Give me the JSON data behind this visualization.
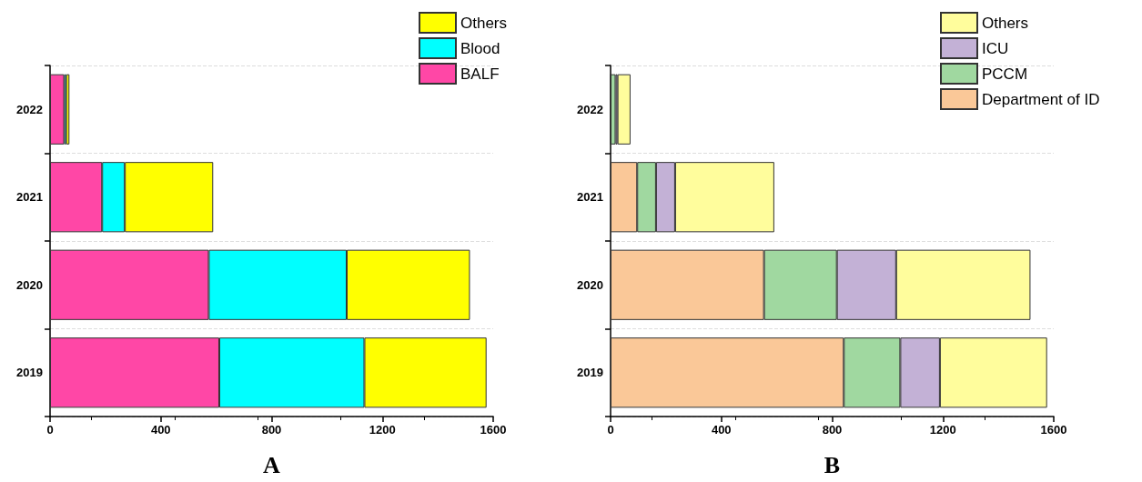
{
  "chart_data": [
    {
      "type": "bar",
      "orientation": "horizontal",
      "stacked": true,
      "xlabel": "A",
      "categories": [
        "2022",
        "2021",
        "2020",
        "2019"
      ],
      "xlim": [
        0,
        1600
      ],
      "xticks": [
        0,
        400,
        800,
        1200,
        1600
      ],
      "grid": "y",
      "legend": "top right",
      "series": [
        {
          "name": "BALF",
          "color": "#ff47a6",
          "values": [
            51,
            188,
            573,
            611
          ]
        },
        {
          "name": "Blood",
          "color": "#00ffff",
          "values": [
            7,
            82,
            498,
            524
          ]
        },
        {
          "name": "Others",
          "color": "#ffff00",
          "values": [
            12,
            319,
            445,
            441
          ]
        }
      ]
    },
    {
      "type": "bar",
      "orientation": "horizontal",
      "stacked": true,
      "xlabel": "B",
      "categories": [
        "2022",
        "2021",
        "2020",
        "2019"
      ],
      "xlim": [
        0,
        1600
      ],
      "xticks": [
        0,
        400,
        800,
        1200,
        1600
      ],
      "grid": "y",
      "legend": "top right",
      "series": [
        {
          "name": "Department of ID",
          "color": "#fac898",
          "values": [
            0,
            96,
            554,
            842
          ]
        },
        {
          "name": "PCCM",
          "color": "#a0d8a0",
          "values": [
            18,
            68,
            263,
            204
          ]
        },
        {
          "name": "ICU",
          "color": "#c3b1d6",
          "values": [
            7,
            69,
            214,
            143
          ]
        },
        {
          "name": "Others",
          "color": "#fffd9c",
          "values": [
            47,
            358,
            485,
            387
          ]
        }
      ]
    }
  ]
}
